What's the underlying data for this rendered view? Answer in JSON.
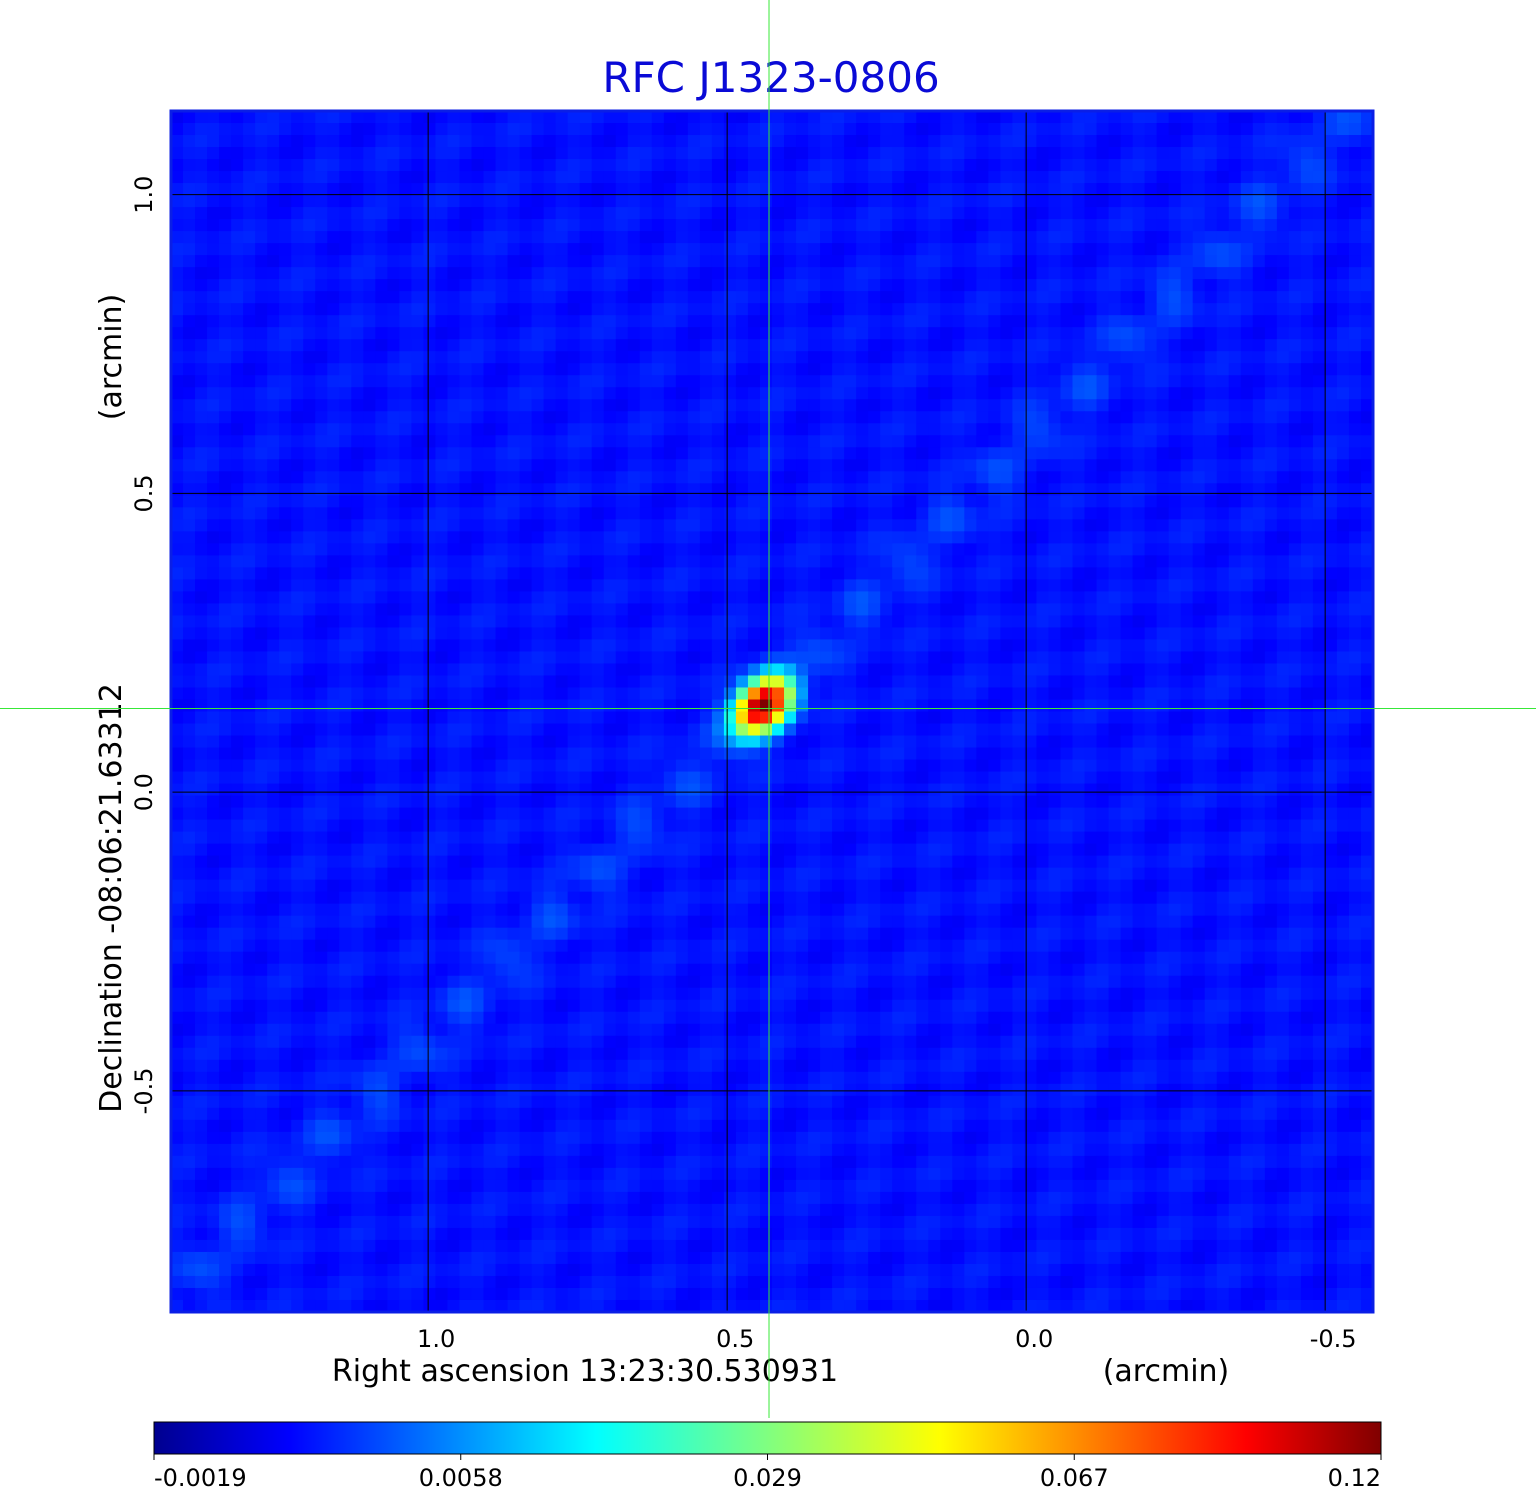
{
  "chart_data": {
    "type": "heatmap",
    "title": "RFC J1323-0806",
    "title_color": "#0a0ad6",
    "xlabel": "Right ascension  13:23:30.530931",
    "xunit": "(arcmin)",
    "ylabel": "Declination  -08:06:21.63312",
    "yunit": "(arcmin)",
    "xlim": [
      1.43,
      -0.58
    ],
    "ylim": [
      -0.87,
      1.14
    ],
    "x_reversed": true,
    "xticks": [
      1.0,
      0.5,
      0.0,
      -0.5
    ],
    "xtick_labels": [
      "1.0",
      "0.5",
      "0.0",
      "-0.5"
    ],
    "yticks": [
      1.0,
      0.5,
      0.0,
      -0.5
    ],
    "ytick_labels": [
      "1.0",
      "0.5",
      "0.0",
      "-0.5"
    ],
    "grid": true,
    "grid_color": "#000000",
    "frame_color": "#0a1ee6",
    "crosshair": {
      "x": 0.43,
      "y": 0.14,
      "color": "#38e838"
    },
    "source": {
      "x": 0.44,
      "y": 0.145,
      "peak": 0.12
    },
    "background_value": 0.0005,
    "colormap": "jet",
    "colorbar": {
      "tick_labels": [
        "-0.0019",
        "0.0058",
        "0.029",
        "0.067",
        "0.12"
      ],
      "range": [
        -0.0019,
        0.12
      ]
    }
  }
}
